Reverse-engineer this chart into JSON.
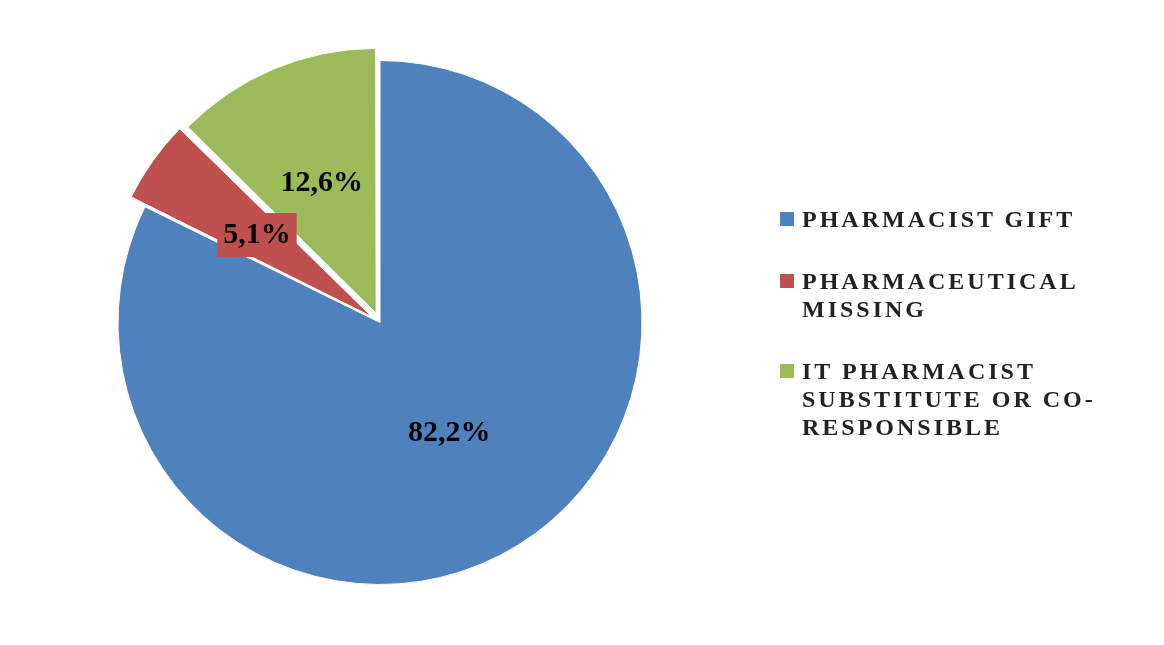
{
  "chart_data": {
    "type": "pie",
    "categories": [
      "PHARMACIST GIFT",
      "PHARMACEUTICAL MISSING",
      "IT PHARMACIST SUBSTITUTE OR CO-RESPONSIBLE"
    ],
    "values": [
      82.2,
      5.1,
      12.6
    ],
    "colors": [
      "#4f81bd",
      "#c0504d",
      "#9bbb59"
    ],
    "value_labels": [
      "82,2%",
      "5,1%",
      "12,6%"
    ],
    "legend": "right"
  }
}
